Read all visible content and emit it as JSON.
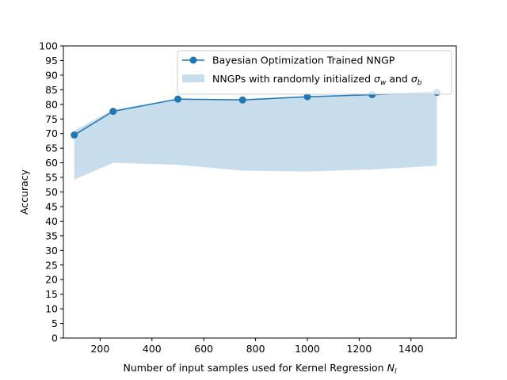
{
  "chart_data": {
    "type": "line",
    "xlabel": "Number of input samples used for Kernel Regression",
    "xlabel_symbol": "N",
    "xlabel_symbol_sub": "l",
    "ylabel": "Accuracy",
    "xlim": [
      58,
      1575
    ],
    "ylim": [
      0,
      100
    ],
    "xticks": [
      200,
      400,
      600,
      800,
      1000,
      1200,
      1400
    ],
    "yticks": [
      0,
      5,
      10,
      15,
      20,
      25,
      30,
      35,
      40,
      45,
      50,
      55,
      60,
      65,
      70,
      75,
      80,
      85,
      90,
      95,
      100
    ],
    "grid": false,
    "legend_position": "top-right",
    "series": [
      {
        "name": "Bayesian Optimization Trained NNGP",
        "kind": "line-markers",
        "color": "#1f77b4",
        "x": [
          100,
          250,
          500,
          750,
          1000,
          1250,
          1500
        ],
        "y": [
          69.5,
          77.6,
          81.8,
          81.5,
          82.6,
          83.3,
          84.1
        ]
      },
      {
        "name_prefix": "NNGPs with randomly initialized",
        "name_sym1": "σ",
        "name_sym1_sub": "w",
        "name_mid": "and",
        "name_sym2": "σ",
        "name_sym2_sub": "b",
        "kind": "band",
        "color": "#1f77b4",
        "opacity": 0.25,
        "x": [
          100,
          250,
          500,
          750,
          1000,
          1250,
          1500
        ],
        "upper": [
          71.0,
          78.2,
          81.9,
          81.8,
          82.8,
          83.6,
          84.6
        ],
        "lower": [
          54.2,
          60.0,
          59.3,
          57.3,
          57.0,
          57.7,
          59.0
        ]
      }
    ]
  }
}
